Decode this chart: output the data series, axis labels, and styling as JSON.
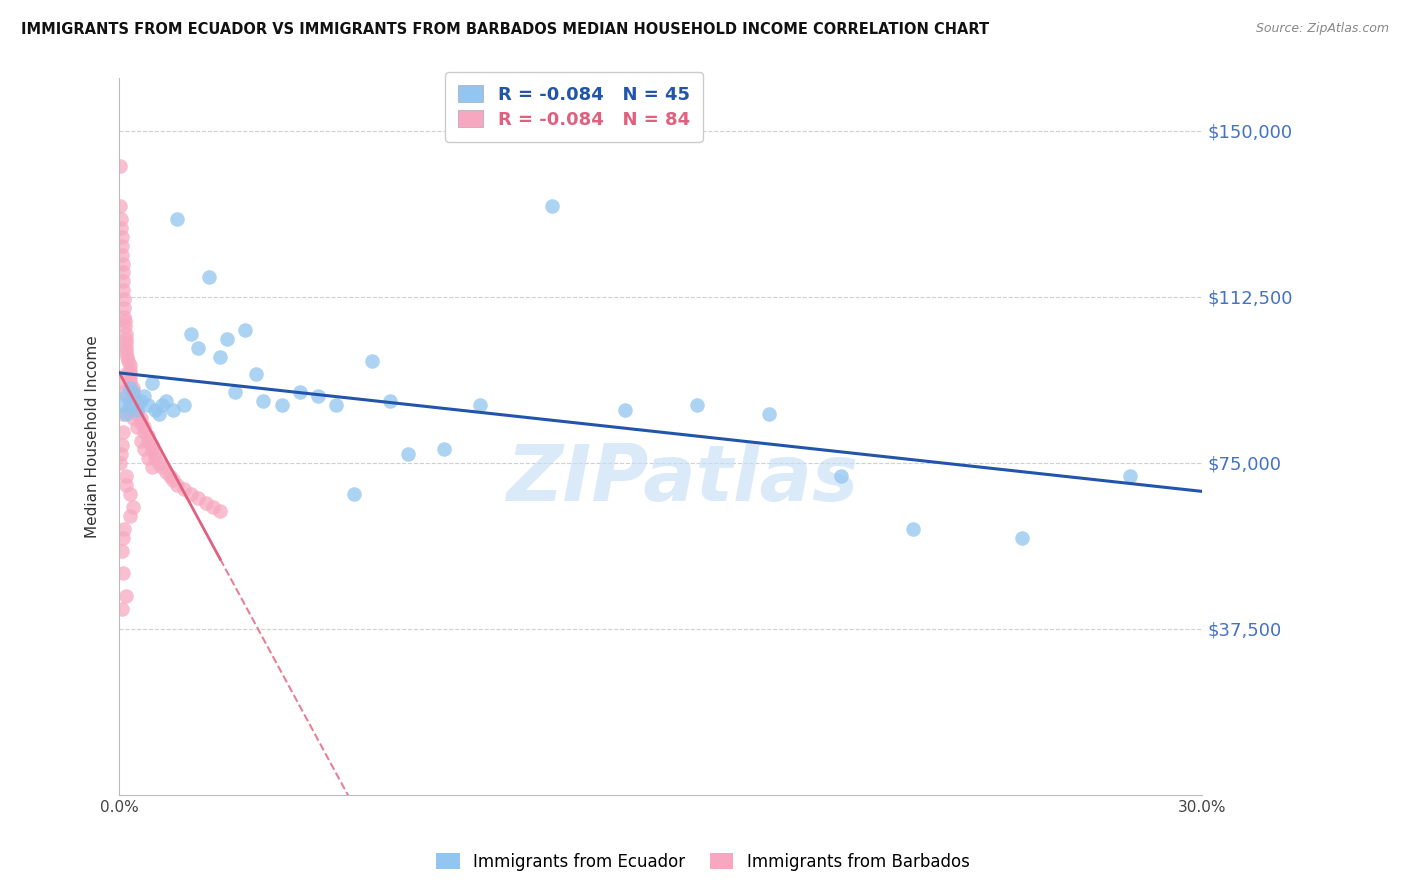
{
  "title": "IMMIGRANTS FROM ECUADOR VS IMMIGRANTS FROM BARBADOS MEDIAN HOUSEHOLD INCOME CORRELATION CHART",
  "source": "Source: ZipAtlas.com",
  "ylabel": "Median Household Income",
  "ytick_vals": [
    37500,
    75000,
    112500,
    150000
  ],
  "ytick_labels": [
    "$37,500",
    "$75,000",
    "$112,500",
    "$150,000"
  ],
  "xmin": 0.0,
  "xmax": 0.3,
  "ymin": 0,
  "ymax": 162000,
  "watermark": "ZIPatlas",
  "legend_ecuador": "R = -0.084   N = 45",
  "legend_barbados": "R = -0.084   N = 84",
  "legend_label_ecuador": "Immigrants from Ecuador",
  "legend_label_barbados": "Immigrants from Barbados",
  "color_ecuador": "#92c5f0",
  "color_barbados": "#f7a8c0",
  "trendline_ecuador_color": "#2255aa",
  "trendline_barbados_color": "#e06080",
  "ecuador_x": [
    0.001,
    0.002,
    0.002,
    0.003,
    0.003,
    0.004,
    0.005,
    0.006,
    0.007,
    0.008,
    0.009,
    0.01,
    0.011,
    0.012,
    0.013,
    0.015,
    0.016,
    0.018,
    0.02,
    0.022,
    0.025,
    0.028,
    0.03,
    0.032,
    0.035,
    0.038,
    0.04,
    0.045,
    0.05,
    0.055,
    0.06,
    0.065,
    0.07,
    0.075,
    0.08,
    0.09,
    0.1,
    0.12,
    0.14,
    0.16,
    0.18,
    0.2,
    0.22,
    0.25,
    0.28
  ],
  "ecuador_y": [
    88000,
    90000,
    86000,
    92000,
    88000,
    91000,
    87000,
    89000,
    90000,
    88000,
    93000,
    87000,
    86000,
    88000,
    89000,
    87000,
    130000,
    88000,
    104000,
    101000,
    117000,
    99000,
    103000,
    91000,
    105000,
    95000,
    89000,
    88000,
    91000,
    90000,
    88000,
    68000,
    98000,
    89000,
    77000,
    78000,
    88000,
    133000,
    87000,
    88000,
    86000,
    72000,
    60000,
    58000,
    72000
  ],
  "barbados_x": [
    0.0003,
    0.0004,
    0.0005,
    0.0006,
    0.0007,
    0.0008,
    0.0009,
    0.001,
    0.001,
    0.001,
    0.0012,
    0.0013,
    0.0015,
    0.0015,
    0.0016,
    0.0017,
    0.0018,
    0.002,
    0.002,
    0.002,
    0.002,
    0.0022,
    0.0025,
    0.003,
    0.003,
    0.003,
    0.003,
    0.003,
    0.004,
    0.004,
    0.004,
    0.0045,
    0.005,
    0.005,
    0.005,
    0.006,
    0.006,
    0.007,
    0.007,
    0.008,
    0.008,
    0.009,
    0.009,
    0.01,
    0.01,
    0.011,
    0.012,
    0.013,
    0.014,
    0.015,
    0.016,
    0.018,
    0.02,
    0.022,
    0.024,
    0.026,
    0.028,
    0.003,
    0.004,
    0.005,
    0.006,
    0.007,
    0.008,
    0.009,
    0.001,
    0.0015,
    0.002,
    0.0025,
    0.001,
    0.0008,
    0.0006,
    0.0004,
    0.001,
    0.002,
    0.003,
    0.004,
    0.002,
    0.003,
    0.0015,
    0.0012,
    0.0009,
    0.0007,
    0.001,
    0.002
  ],
  "barbados_y": [
    142000,
    133000,
    130000,
    128000,
    126000,
    124000,
    122000,
    120000,
    118000,
    116000,
    114000,
    112000,
    110000,
    108000,
    107000,
    106000,
    104000,
    103000,
    102000,
    101000,
    100000,
    99000,
    98000,
    97000,
    96000,
    95000,
    94000,
    93000,
    92000,
    91000,
    90000,
    89000,
    88000,
    87000,
    86000,
    85000,
    84000,
    83000,
    82000,
    81000,
    80000,
    79000,
    78000,
    77000,
    76000,
    75000,
    74000,
    73000,
    72000,
    71000,
    70000,
    69000,
    68000,
    67000,
    66000,
    65000,
    64000,
    89000,
    85000,
    83000,
    80000,
    78000,
    76000,
    74000,
    91000,
    93000,
    95000,
    87000,
    82000,
    79000,
    77000,
    75000,
    86000,
    72000,
    68000,
    65000,
    70000,
    63000,
    60000,
    58000,
    55000,
    42000,
    50000,
    45000
  ]
}
